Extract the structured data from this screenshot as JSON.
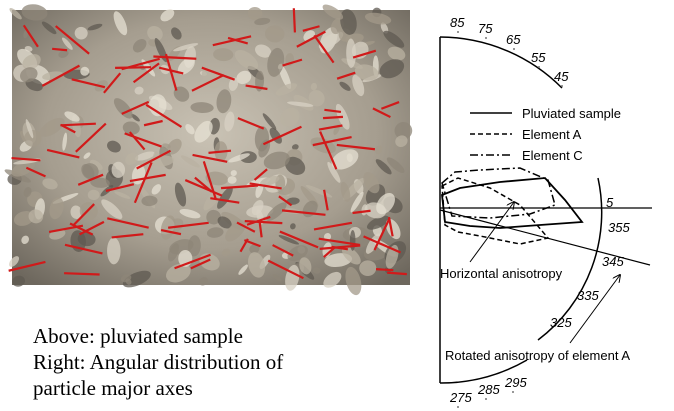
{
  "caption": {
    "lines": [
      "Above: pluviated sample",
      "Right: Angular distribution of",
      "particle major axes"
    ]
  },
  "diagram": {
    "legend": [
      "Pluviated sample",
      "Element A",
      "Element C"
    ],
    "top_angles": [
      85,
      75,
      65,
      55,
      45
    ],
    "middle_angles": [
      5,
      355,
      345,
      335,
      325
    ],
    "bottom_angles": [
      275,
      285,
      295
    ],
    "annotations": [
      "Horizontal anisotropy",
      "Rotated anisotropy of element A"
    ]
  }
}
